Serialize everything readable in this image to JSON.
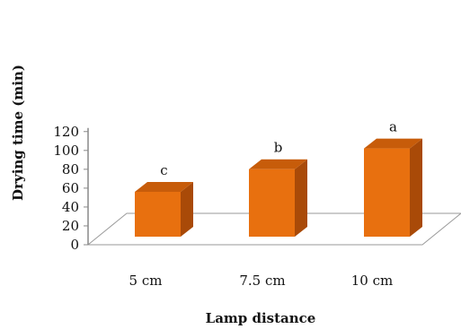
{
  "chart_data": {
    "type": "bar",
    "categories": [
      "5 cm",
      "7.5 cm",
      "10 cm"
    ],
    "values": [
      58,
      82,
      104
    ],
    "labels": [
      "c",
      "b",
      "a"
    ],
    "xlabel": "Lamp distance",
    "ylabel": "Drying time (min)",
    "ylim": [
      0,
      120
    ],
    "yticks": [
      "0",
      "20",
      "40",
      "60",
      "80",
      "100",
      "120"
    ],
    "style": "3d",
    "grid": false,
    "colors": {
      "front": "#E8700F",
      "side": "#A94A08",
      "top": "#C75C0A"
    }
  }
}
